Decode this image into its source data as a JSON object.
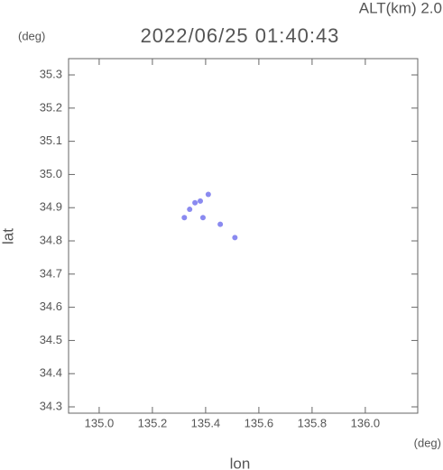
{
  "chart_data": {
    "type": "scatter",
    "title": "2022/06/25 01:40:43",
    "subtitle": "ALT(km) 2.0",
    "y_unit": "(deg)",
    "x_unit": "(deg)",
    "x_label": "lon",
    "y_label": "lat",
    "x": [
      135.41,
      135.38,
      135.36,
      135.34,
      135.39,
      135.455,
      135.51,
      135.32
    ],
    "values": [
      34.94,
      34.92,
      34.915,
      34.895,
      34.87,
      34.85,
      34.81,
      34.87
    ],
    "color": "#8a8af0",
    "xlim": [
      134.885,
      136.197
    ],
    "ylim": [
      34.281,
      35.349
    ],
    "xticks": [
      {
        "value": 135.0,
        "label": "135.0"
      },
      135.2,
      135.4,
      135.6,
      135.8,
      {
        "value": 136.0,
        "label": "136.0"
      }
    ],
    "yticks": [
      {
        "value": 34.3,
        "label": "34.3"
      },
      34.4,
      34.5,
      34.6,
      34.7,
      34.8,
      34.9,
      {
        "value": 35.0,
        "label": "35.0"
      },
      35.1,
      35.2,
      35.3
    ],
    "grid": false
  }
}
